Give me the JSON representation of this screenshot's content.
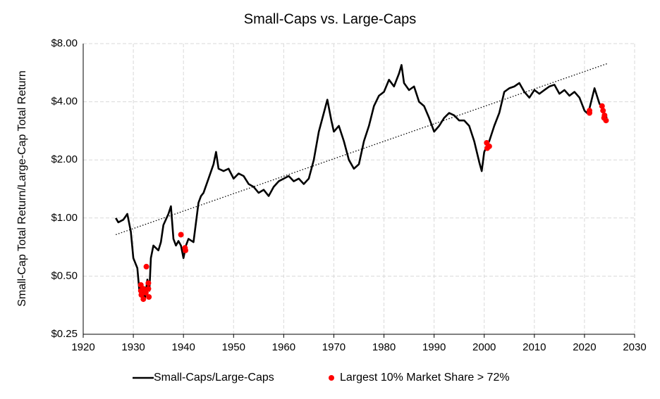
{
  "chart_data": {
    "type": "line",
    "title": "Small-Caps vs. Large-Caps",
    "y_label": "Small-Cap Total Return/Large-Cap Total Return",
    "log_scale": true,
    "grid": true,
    "legend": "bottom",
    "xlim": [
      1920,
      2030
    ],
    "xticks": [
      1920,
      1930,
      1940,
      1950,
      1960,
      1970,
      1980,
      1990,
      2000,
      2010,
      2020,
      2030
    ],
    "ylim": [
      0.25,
      8
    ],
    "yticks": [
      {
        "value": 0.25,
        "label": "$0.25"
      },
      {
        "value": 0.5,
        "label": "$0.50"
      },
      {
        "value": 1,
        "label": "$1.00"
      },
      {
        "value": 2,
        "label": "$2.00"
      },
      {
        "value": 4,
        "label": "$4.00"
      },
      {
        "value": 8,
        "label": "$8.00"
      }
    ],
    "series": [
      {
        "name": "Small-Caps/Large-Caps",
        "color": "#000000",
        "type": "line",
        "x": [
          1926.5,
          1927,
          1928,
          1928.8,
          1929.5,
          1930,
          1930.8,
          1931.2,
          1931.8,
          1932.3,
          1932.8,
          1933.2,
          1933.5,
          1934,
          1935,
          1935.5,
          1936,
          1937,
          1937.5,
          1938,
          1938.5,
          1939,
          1939.5,
          1940,
          1940.5,
          1941,
          1942,
          1943,
          1943.5,
          1944,
          1945,
          1946,
          1946.5,
          1947,
          1948,
          1949,
          1950,
          1951,
          1952,
          1953,
          1954,
          1955,
          1956,
          1957,
          1958,
          1959,
          1960,
          1961,
          1962,
          1963,
          1964,
          1965,
          1966,
          1967,
          1968,
          1968.7,
          1969.5,
          1970,
          1971,
          1972,
          1973,
          1974,
          1975,
          1976,
          1977,
          1978,
          1979,
          1980,
          1981,
          1982,
          1983,
          1983.5,
          1984,
          1985,
          1986,
          1987,
          1988,
          1989,
          1990,
          1991,
          1992,
          1993,
          1994,
          1995,
          1996,
          1997,
          1998,
          1999,
          1999.5,
          2000,
          2001,
          2002,
          2003,
          2004,
          2005,
          2006,
          2007,
          2008,
          2009,
          2010,
          2011,
          2012,
          2013,
          2014,
          2015,
          2016,
          2017,
          2018,
          2019,
          2020,
          2020.5,
          2021,
          2022,
          2023,
          2023.5,
          2024,
          2024.5
        ],
        "values": [
          1.0,
          0.95,
          0.98,
          1.05,
          0.85,
          0.62,
          0.55,
          0.42,
          0.45,
          0.38,
          0.48,
          0.42,
          0.62,
          0.72,
          0.68,
          0.75,
          0.92,
          1.05,
          1.15,
          0.78,
          0.72,
          0.76,
          0.72,
          0.62,
          0.72,
          0.78,
          0.75,
          1.2,
          1.3,
          1.35,
          1.6,
          1.9,
          2.2,
          1.8,
          1.75,
          1.8,
          1.6,
          1.7,
          1.65,
          1.5,
          1.45,
          1.35,
          1.4,
          1.3,
          1.45,
          1.55,
          1.6,
          1.65,
          1.55,
          1.6,
          1.5,
          1.6,
          2.0,
          2.8,
          3.5,
          4.1,
          3.2,
          2.8,
          3.0,
          2.5,
          2.0,
          1.8,
          1.9,
          2.5,
          3.0,
          3.8,
          4.3,
          4.5,
          5.2,
          4.8,
          5.6,
          6.2,
          5.0,
          4.6,
          4.8,
          4.0,
          3.8,
          3.3,
          2.8,
          3.0,
          3.3,
          3.5,
          3.4,
          3.2,
          3.2,
          3.0,
          2.5,
          1.95,
          1.75,
          2.2,
          2.5,
          3.0,
          3.5,
          4.5,
          4.7,
          4.8,
          5.0,
          4.5,
          4.2,
          4.6,
          4.4,
          4.6,
          4.8,
          4.9,
          4.4,
          4.6,
          4.3,
          4.5,
          4.2,
          3.6,
          3.5,
          3.7,
          4.7,
          3.9,
          3.8,
          3.4,
          3.3
        ]
      },
      {
        "name": "Largest 10% Market Share > 72%",
        "color": "#ff0000",
        "type": "scatter",
        "x": [
          1931.5,
          1931.5,
          1931.6,
          1932,
          1932,
          1932.5,
          1932.6,
          1933,
          1933,
          1933.1,
          1939.5,
          1940.3,
          1940.4,
          2000.5,
          2000.6,
          2001,
          2021,
          2021,
          2023.5,
          2023.7,
          2023.9,
          2024,
          2024.3
        ],
        "values": [
          0.45,
          0.42,
          0.4,
          0.38,
          0.43,
          0.41,
          0.56,
          0.46,
          0.43,
          0.39,
          0.82,
          0.7,
          0.68,
          2.45,
          2.3,
          2.35,
          3.6,
          3.5,
          3.8,
          3.6,
          3.3,
          3.4,
          3.2
        ]
      }
    ],
    "trendline": {
      "x": [
        1926.5,
        2024.5
      ],
      "values": [
        0.82,
        6.3
      ],
      "color": "#000000"
    }
  }
}
